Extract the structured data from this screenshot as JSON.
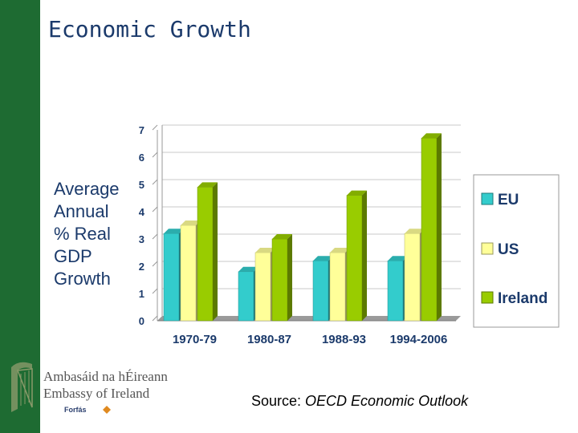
{
  "title": "Economic Growth",
  "y_axis_label": "Average\nAnnual\n% Real\nGDP\nGrowth",
  "source_prefix": "Source: ",
  "source_name": "OECD Economic Outlook",
  "logo": {
    "line1": "Ambasáid na hÉireann",
    "line2": "Embassy of Ireland",
    "forfas": "Forfás"
  },
  "colors": {
    "EU": "#33cccc",
    "US": "#ffff99",
    "Ireland": "#99cc00",
    "background": "#1e6b32"
  },
  "chart_data": {
    "type": "bar",
    "categories": [
      "1970-79",
      "1980-87",
      "1988-93",
      "1994-2006"
    ],
    "series": [
      {
        "name": "EU",
        "values": [
          3.2,
          1.8,
          2.2,
          2.2
        ]
      },
      {
        "name": "US",
        "values": [
          3.5,
          2.5,
          2.5,
          3.2
        ]
      },
      {
        "name": "Ireland",
        "values": [
          4.9,
          3.0,
          4.6,
          6.7
        ]
      }
    ],
    "ylabel": "Average Annual % Real GDP Growth",
    "ylim": [
      0,
      7
    ],
    "yticks": [
      "0",
      "1",
      "2",
      "3",
      "4",
      "5",
      "6",
      "7"
    ],
    "grid": true,
    "legend": "right",
    "style": "3d"
  }
}
